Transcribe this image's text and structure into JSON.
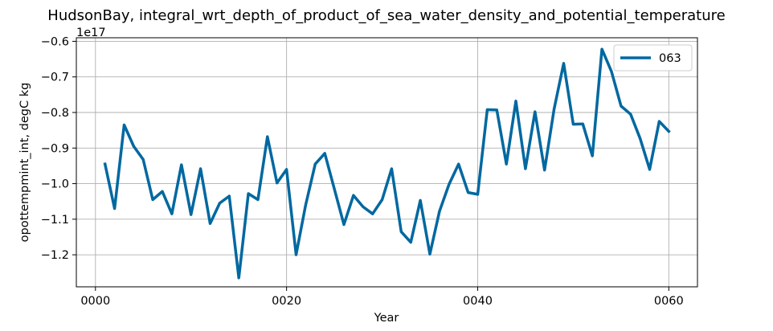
{
  "chart_data": {
    "type": "line",
    "title": "HudsonBay, integral_wrt_depth_of_product_of_sea_water_density_and_potential_temperature",
    "xlabel": "Year",
    "ylabel": "opottempmint_int, degC kg",
    "y_offset_label": "1e17",
    "y_scale": 1e+17,
    "xlim": [
      -2,
      63
    ],
    "ylim": [
      -1.29,
      -0.59
    ],
    "x_ticks": [
      0,
      20,
      40,
      60
    ],
    "x_tick_labels": [
      "0000",
      "0020",
      "0040",
      "0060"
    ],
    "y_ticks": [
      -1.2,
      -1.1,
      -1.0,
      -0.9,
      -0.8,
      -0.7,
      -0.6
    ],
    "y_tick_labels": [
      "−1.2",
      "−1.1",
      "−1.0",
      "−0.9",
      "−0.8",
      "−0.7",
      "−0.6"
    ],
    "grid": true,
    "legend_position": "top-right",
    "color": "#0068a0",
    "series": [
      {
        "name": "063",
        "x": [
          1,
          2,
          3,
          4,
          5,
          6,
          7,
          8,
          9,
          10,
          11,
          12,
          13,
          14,
          15,
          16,
          17,
          18,
          19,
          20,
          21,
          22,
          23,
          24,
          25,
          26,
          27,
          28,
          29,
          30,
          31,
          32,
          33,
          34,
          35,
          36,
          37,
          38,
          39,
          40,
          41,
          42,
          43,
          44,
          45,
          46,
          47,
          48,
          49,
          50,
          51,
          52,
          53,
          54,
          55,
          56,
          57,
          58,
          59,
          60
        ],
        "values": [
          -0.945,
          -1.07,
          -0.835,
          -0.895,
          -0.932,
          -1.045,
          -1.022,
          -1.085,
          -0.947,
          -1.087,
          -0.958,
          -1.112,
          -1.055,
          -1.035,
          -1.265,
          -1.028,
          -1.045,
          -0.868,
          -0.998,
          -0.96,
          -1.2,
          -1.06,
          -0.945,
          -0.915,
          -1.015,
          -1.115,
          -1.033,
          -1.065,
          -1.085,
          -1.045,
          -0.958,
          -1.135,
          -1.165,
          -1.047,
          -1.198,
          -1.078,
          -1.002,
          -0.945,
          -1.025,
          -1.03,
          -0.792,
          -0.793,
          -0.945,
          -0.768,
          -0.958,
          -0.798,
          -0.962,
          -0.79,
          -0.662,
          -0.833,
          -0.832,
          -0.922,
          -0.622,
          -0.685,
          -0.782,
          -0.805,
          -0.873,
          -0.96,
          -0.825,
          -0.853
        ]
      }
    ]
  }
}
